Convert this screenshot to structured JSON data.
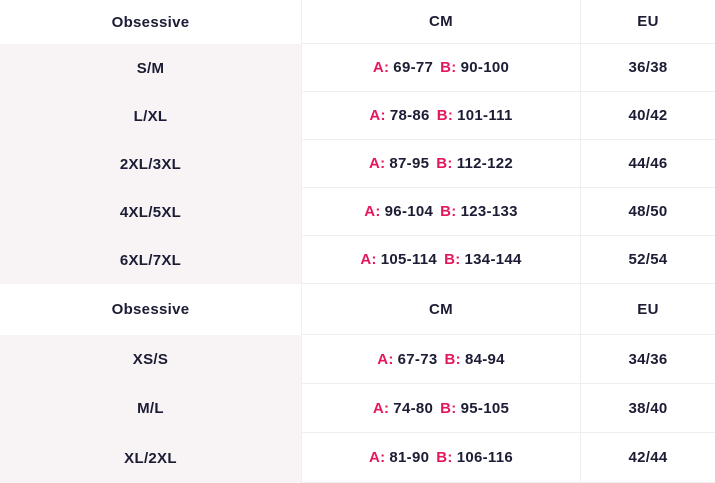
{
  "labels": {
    "a": "A:",
    "b": "B:"
  },
  "colors": {
    "accent_pink": "#e5185e",
    "dark_text": "#1c1c35",
    "row_tint": "#f8f4f5",
    "divider": "#f1eef0"
  },
  "sections": [
    {
      "header": {
        "brand": "Obsessive",
        "cm": "CM",
        "eu": "EU"
      },
      "rows": [
        {
          "size": "S/M",
          "a": "69-77",
          "b": "90-100",
          "eu": "36/38"
        },
        {
          "size": "L/XL",
          "a": "78-86",
          "b": "101-111",
          "eu": "40/42"
        },
        {
          "size": "2XL/3XL",
          "a": "87-95",
          "b": "112-122",
          "eu": "44/46"
        },
        {
          "size": "4XL/5XL",
          "a": "96-104",
          "b": "123-133",
          "eu": "48/50"
        },
        {
          "size": "6XL/7XL",
          "a": "105-114",
          "b": "134-144",
          "eu": "52/54"
        }
      ]
    },
    {
      "header": {
        "brand": "Obsessive",
        "cm": "CM",
        "eu": "EU"
      },
      "rows": [
        {
          "size": "XS/S",
          "a": "67-73",
          "b": "84-94",
          "eu": "34/36"
        },
        {
          "size": "M/L",
          "a": "74-80",
          "b": "95-105",
          "eu": "38/40"
        },
        {
          "size": "XL/2XL",
          "a": "81-90",
          "b": "106-116",
          "eu": "42/44"
        }
      ]
    }
  ]
}
